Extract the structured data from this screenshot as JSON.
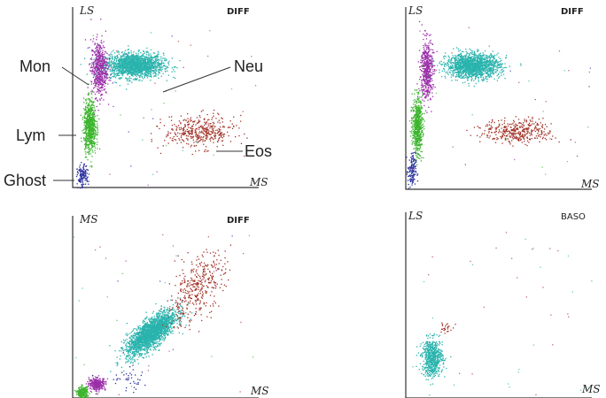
{
  "colors": {
    "neu": "#2ab3ad",
    "mon": "#9b2fa8",
    "lym": "#3db52e",
    "eos": "#a33328",
    "ghost": "#2a2fa0",
    "axis": "#333333"
  },
  "chart_data": [
    {
      "type": "scatter",
      "title": "DIFF",
      "xlabel": "MS",
      "ylabel": "LS",
      "xlim": [
        0,
        100
      ],
      "ylim": [
        0,
        100
      ],
      "callouts": [
        "Mon",
        "Neu",
        "Lym",
        "Eos",
        "Ghost"
      ],
      "series": [
        {
          "name": "Neu",
          "color": "#2ab3ad",
          "center": [
            33,
            68
          ],
          "spread": [
            14,
            6
          ],
          "count": 1800
        },
        {
          "name": "Mon",
          "color": "#9b2fa8",
          "center": [
            14,
            66
          ],
          "spread": [
            4,
            14
          ],
          "count": 550
        },
        {
          "name": "Lym",
          "color": "#3db52e",
          "center": [
            9,
            34
          ],
          "spread": [
            3,
            13
          ],
          "count": 700
        },
        {
          "name": "Eos",
          "color": "#a33328",
          "center": [
            68,
            31
          ],
          "spread": [
            17,
            8
          ],
          "count": 420
        },
        {
          "name": "Ghost",
          "color": "#2a2fa0",
          "center": [
            5,
            6
          ],
          "spread": [
            2.5,
            6
          ],
          "count": 140
        }
      ]
    },
    {
      "type": "scatter",
      "title": "DIFF",
      "xlabel": "MS",
      "ylabel": "LS",
      "xlim": [
        0,
        100
      ],
      "ylim": [
        0,
        100
      ],
      "series": [
        {
          "color": "#2ab3ad",
          "center": [
            36,
            68
          ],
          "spread": [
            13,
            6
          ],
          "count": 1600
        },
        {
          "color": "#9b2fa8",
          "center": [
            11,
            66
          ],
          "spread": [
            3,
            15
          ],
          "count": 500
        },
        {
          "color": "#3db52e",
          "center": [
            6,
            35
          ],
          "spread": [
            2.5,
            14
          ],
          "count": 600
        },
        {
          "color": "#a33328",
          "center": [
            60,
            32
          ],
          "spread": [
            17,
            6
          ],
          "count": 380
        },
        {
          "color": "#2a2fa0",
          "center": [
            3,
            10
          ],
          "spread": [
            2,
            9
          ],
          "count": 130
        }
      ]
    },
    {
      "type": "scatter",
      "title": "DIFF",
      "xlabel": "MS",
      "ylabel": "MS",
      "xlim": [
        0,
        100
      ],
      "ylim": [
        0,
        100
      ],
      "series": [
        {
          "color": "#2ab3ad",
          "center": [
            42,
            36
          ],
          "spread": [
            12,
            11
          ],
          "count": 2200,
          "corr": 0.75
        },
        {
          "color": "#a33328",
          "center": [
            66,
            60
          ],
          "spread": [
            14,
            18
          ],
          "count": 380,
          "corr": 0.55
        },
        {
          "color": "#9b2fa8",
          "center": [
            13,
            8
          ],
          "spread": [
            4,
            3
          ],
          "count": 300
        },
        {
          "color": "#3db52e",
          "center": [
            5,
            3
          ],
          "spread": [
            2.5,
            3
          ],
          "count": 260
        },
        {
          "color": "#2a2fa0",
          "center": [
            30,
            10
          ],
          "spread": [
            12,
            6
          ],
          "count": 40
        }
      ]
    },
    {
      "type": "scatter",
      "title": "BASO",
      "xlabel": "MS",
      "ylabel": "LS",
      "xlim": [
        0,
        100
      ],
      "ylim": [
        0,
        100
      ],
      "series": [
        {
          "color": "#2ab3ad",
          "center": [
            14,
            22
          ],
          "spread": [
            5,
            9
          ],
          "count": 650
        },
        {
          "color": "#a33328",
          "center": [
            21,
            38
          ],
          "spread": [
            3,
            3
          ],
          "count": 25
        }
      ]
    }
  ]
}
